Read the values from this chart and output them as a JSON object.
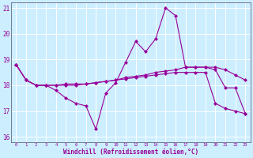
{
  "hours": [
    0,
    1,
    2,
    3,
    4,
    5,
    6,
    7,
    8,
    9,
    10,
    11,
    12,
    13,
    14,
    15,
    16,
    17,
    18,
    19,
    20,
    21,
    22,
    23
  ],
  "temp_line1": [
    18.8,
    18.2,
    18.0,
    18.0,
    17.8,
    17.5,
    17.3,
    17.2,
    16.3,
    17.7,
    18.1,
    18.9,
    19.7,
    19.3,
    19.8,
    21.0,
    20.7,
    18.7,
    18.7,
    18.7,
    18.6,
    17.9,
    17.9,
    16.9
  ],
  "temp_line2": [
    18.8,
    18.2,
    18.0,
    18.0,
    18.0,
    18.05,
    18.05,
    18.05,
    18.1,
    18.15,
    18.2,
    18.3,
    18.35,
    18.4,
    18.5,
    18.55,
    18.6,
    18.7,
    18.7,
    18.7,
    18.7,
    18.6,
    18.4,
    18.2
  ],
  "temp_line3": [
    18.8,
    18.2,
    18.0,
    18.0,
    18.0,
    18.0,
    18.0,
    18.05,
    18.1,
    18.15,
    18.2,
    18.25,
    18.3,
    18.35,
    18.4,
    18.45,
    18.5,
    18.5,
    18.5,
    18.5,
    17.3,
    17.1,
    17.0,
    16.9
  ],
  "line_color": "#990099",
  "bg_color": "#cceeff",
  "grid_color": "#aaddcc",
  "xlabel": "Windchill (Refroidissement éolien,°C)",
  "ylim": [
    15.8,
    21.2
  ],
  "xlim": [
    -0.5,
    23.5
  ],
  "yticks": [
    16,
    17,
    18,
    19,
    20,
    21
  ],
  "xticks": [
    0,
    1,
    2,
    3,
    4,
    5,
    6,
    7,
    8,
    9,
    10,
    11,
    12,
    13,
    14,
    15,
    16,
    17,
    18,
    19,
    20,
    21,
    22,
    23
  ]
}
